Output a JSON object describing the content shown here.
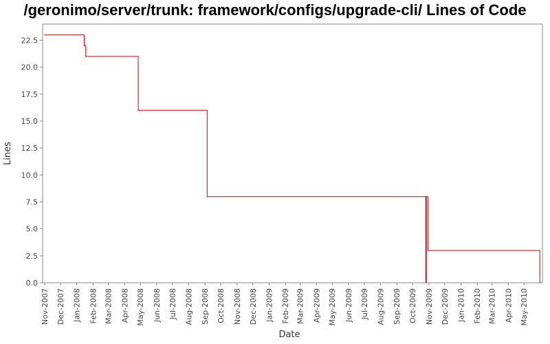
{
  "chart_data": {
    "type": "line",
    "title": "/geronimo/server/trunk: framework/configs/upgrade-cli/ Lines of Code",
    "xlabel": "Date",
    "ylabel": "Lines",
    "ylim": [
      0,
      24
    ],
    "xlim": [
      "2007-10-28",
      "2010-06-05"
    ],
    "y_ticks": [
      "0.0",
      "2.5",
      "5.0",
      "7.5",
      "10.0",
      "12.5",
      "15.0",
      "17.5",
      "20.0",
      "22.5"
    ],
    "x_ticks": [
      "Nov-2007",
      "Dec-2007",
      "Jan-2008",
      "Feb-2008",
      "Mar-2008",
      "Apr-2008",
      "May-2008",
      "Jun-2008",
      "Jul-2008",
      "Aug-2008",
      "Sep-2008",
      "Oct-2008",
      "Nov-2008",
      "Dec-2008",
      "Jan-2009",
      "Feb-2009",
      "Mar-2009",
      "Apr-2009",
      "May-2009",
      "Jun-2009",
      "Jul-2009",
      "Aug-2009",
      "Sep-2009",
      "Oct-2009",
      "Nov-2009",
      "Dec-2009",
      "Jan-2010",
      "Feb-2010",
      "Mar-2010",
      "Apr-2010",
      "May-2010"
    ],
    "grid": false,
    "line_color": "#cc0000",
    "series": [
      {
        "step": true,
        "points": [
          {
            "x": "2007-11-01",
            "y": 23
          },
          {
            "x": "2008-01-15",
            "y": 22
          },
          {
            "x": "2008-01-18",
            "y": 21
          },
          {
            "x": "2008-04-27",
            "y": 16
          },
          {
            "x": "2008-09-05",
            "y": 8
          },
          {
            "x": "2009-10-26",
            "y": 0
          },
          {
            "x": "2009-10-27",
            "y": 8
          },
          {
            "x": "2009-10-30",
            "y": 3
          },
          {
            "x": "2010-05-31",
            "y": 0
          }
        ]
      }
    ]
  }
}
